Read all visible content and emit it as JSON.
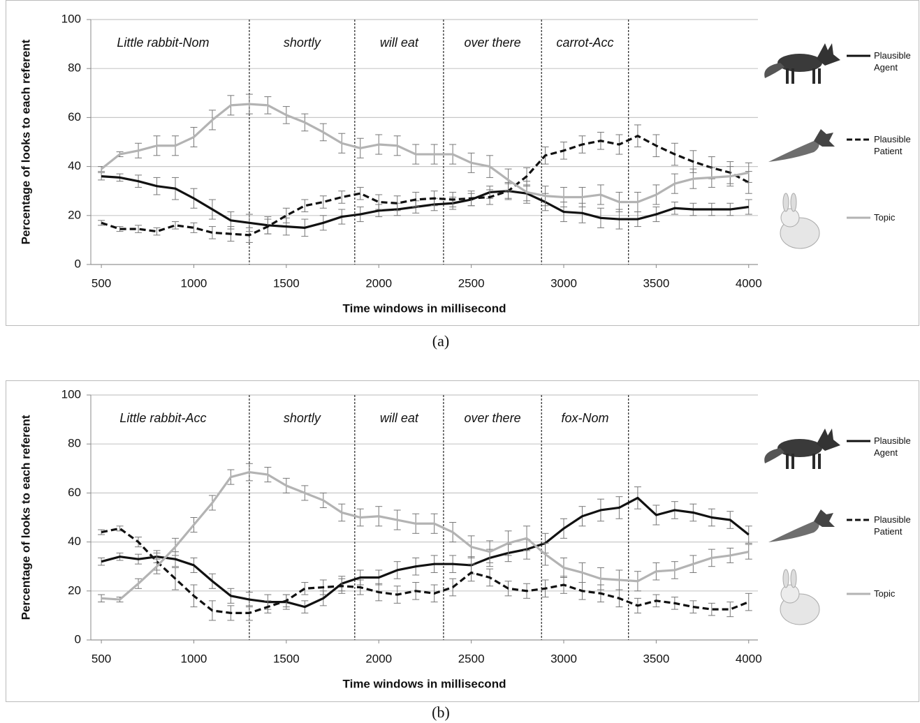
{
  "chart_data": [
    {
      "type": "line",
      "caption": "(a)",
      "x_label": "Time windows in millisecond",
      "y_label": "Percentage of looks to each referent",
      "xlim": [
        443,
        4050
      ],
      "ylim": [
        0,
        100
      ],
      "xticks": [
        500,
        1000,
        1500,
        2000,
        2500,
        3000,
        3500,
        4000
      ],
      "yticks": [
        0,
        20,
        40,
        60,
        80,
        100
      ],
      "grid": true,
      "dividers": [
        1300,
        1870,
        2350,
        2880,
        3350
      ],
      "region_labels": [
        "Little rabbit-Nom",
        "shortly",
        "will eat",
        "over there",
        "carrot-Acc"
      ],
      "x": [
        500,
        600,
        700,
        800,
        900,
        1000,
        1100,
        1200,
        1300,
        1400,
        1500,
        1600,
        1700,
        1800,
        1900,
        2000,
        2100,
        2200,
        2300,
        2400,
        2500,
        2600,
        2700,
        2800,
        2900,
        3000,
        3100,
        3200,
        3300,
        3400,
        3500,
        3600,
        3700,
        3800,
        3900,
        4000
      ],
      "series": [
        {
          "name": "Plausible Agent",
          "color": "#111111",
          "dashed": false,
          "values": [
            36,
            35.5,
            34,
            32,
            31,
            27,
            22.5,
            18,
            17,
            16,
            15.5,
            15,
            17,
            19.5,
            20.5,
            22,
            22.5,
            23.5,
            24.5,
            25,
            26.5,
            29.5,
            30,
            29,
            25.5,
            21.5,
            21,
            19,
            18.5,
            18.5,
            20.5,
            23,
            22.5,
            22.5,
            22.5,
            23.5
          ],
          "errors": [
            1.5,
            1.5,
            2.5,
            3.5,
            4.5,
            4,
            4,
            3.5,
            3.5,
            3.5,
            3.5,
            3.5,
            3,
            3,
            3,
            2.5,
            2.5,
            2.5,
            2.5,
            2.5,
            2.5,
            2.5,
            3,
            3,
            3.5,
            4,
            4,
            4,
            4,
            3,
            3,
            2.5,
            2.5,
            2.5,
            2.5,
            3
          ]
        },
        {
          "name": "Plausible Patient",
          "color": "#111111",
          "dashed": true,
          "values": [
            17,
            14.5,
            14.5,
            13.5,
            16,
            15,
            13,
            12.5,
            12,
            15.5,
            20,
            24,
            25.5,
            27.5,
            29,
            25.5,
            25,
            26.5,
            27,
            26.5,
            27,
            27.5,
            30,
            36,
            44.5,
            46.5,
            49,
            50.5,
            49,
            52.5,
            48.5,
            45,
            42,
            39.5,
            37.5,
            33.5
          ],
          "errors": [
            1,
            1,
            1.5,
            1.5,
            1.5,
            2,
            2.5,
            3,
            3,
            3,
            3,
            2.5,
            2.5,
            2.5,
            2.5,
            3,
            3,
            3,
            3,
            3,
            3,
            3,
            3.5,
            3.5,
            3.5,
            3.5,
            3.5,
            3.5,
            4,
            4.5,
            4.5,
            4.5,
            4.5,
            4.5,
            4.5,
            4.5
          ]
        },
        {
          "name": "Topic",
          "color": "#b3b3b3",
          "dashed": false,
          "values": [
            39,
            45,
            46.5,
            48.5,
            48.5,
            52,
            59,
            65,
            65.5,
            65,
            61,
            58,
            54,
            49.5,
            47.5,
            49,
            48.5,
            45,
            45,
            45,
            41.5,
            40,
            34.5,
            29.5,
            28,
            27.5,
            27.5,
            28.5,
            25.5,
            25.5,
            28.5,
            33,
            35,
            35.5,
            36,
            37.5
          ],
          "errors": [
            1,
            1,
            3,
            4,
            4,
            4,
            4,
            4,
            4,
            3.5,
            3.5,
            3.5,
            3.5,
            4,
            4,
            4,
            4,
            4,
            4,
            4,
            4,
            4.5,
            4.5,
            4.5,
            4,
            4,
            4,
            4,
            4,
            4,
            4,
            4,
            4,
            4,
            4,
            4
          ]
        }
      ]
    },
    {
      "type": "line",
      "caption": "(b)",
      "x_label": "Time windows in millisecond",
      "y_label": "Percentage of looks to each referent",
      "xlim": [
        443,
        4050
      ],
      "ylim": [
        0,
        100
      ],
      "xticks": [
        500,
        1000,
        1500,
        2000,
        2500,
        3000,
        3500,
        4000
      ],
      "yticks": [
        0,
        20,
        40,
        60,
        80,
        100
      ],
      "grid": true,
      "dividers": [
        1300,
        1870,
        2350,
        2880,
        3350
      ],
      "region_labels": [
        "Little rabbit-Acc",
        "shortly",
        "will eat",
        "over there",
        "fox-Nom"
      ],
      "x": [
        500,
        600,
        700,
        800,
        900,
        1000,
        1100,
        1200,
        1300,
        1400,
        1500,
        1600,
        1700,
        1800,
        1900,
        2000,
        2100,
        2200,
        2300,
        2400,
        2500,
        2600,
        2700,
        2800,
        2900,
        3000,
        3100,
        3200,
        3300,
        3400,
        3500,
        3600,
        3700,
        3800,
        3900,
        4000
      ],
      "series": [
        {
          "name": "Plausible Agent",
          "color": "#111111",
          "dashed": false,
          "values": [
            32,
            34,
            33,
            34,
            33,
            30.5,
            24,
            18,
            16.5,
            15.5,
            15.5,
            13.5,
            17,
            23,
            25.5,
            25.5,
            28.5,
            30,
            31,
            31,
            30.5,
            33.5,
            35.5,
            37,
            39.5,
            45.5,
            50.5,
            53,
            54,
            58,
            51,
            53,
            52,
            50,
            49,
            43
          ],
          "errors": [
            1.5,
            1.5,
            2,
            2.5,
            3,
            3,
            3,
            3,
            3,
            3,
            3,
            2.5,
            3,
            3,
            3,
            3,
            3.5,
            3.5,
            3.5,
            3.5,
            3.5,
            3.5,
            3.5,
            4,
            4,
            4,
            4,
            4.5,
            4.5,
            4.5,
            4,
            3.5,
            3.5,
            3.5,
            3.5,
            3.5
          ]
        },
        {
          "name": "Plausible Patient",
          "color": "#111111",
          "dashed": true,
          "values": [
            44,
            45.5,
            40,
            32,
            25,
            18,
            12,
            11,
            11,
            13.5,
            16,
            21,
            21.5,
            22,
            21.5,
            19.5,
            18.5,
            20,
            19,
            21.5,
            27.5,
            25.5,
            21,
            20,
            21,
            22.5,
            20,
            19,
            17,
            14,
            16,
            15,
            13.5,
            12.5,
            12.5,
            15.5
          ],
          "errors": [
            1,
            1,
            2,
            3.5,
            4.5,
            4.5,
            4,
            3,
            3,
            2.5,
            2.5,
            2.5,
            3,
            3,
            3,
            3.5,
            3.5,
            3.5,
            3.5,
            3.5,
            3.5,
            3.5,
            3,
            3,
            3.5,
            3.5,
            3.5,
            3.5,
            3.5,
            3,
            2.5,
            2.5,
            2.5,
            2.5,
            3,
            3.5
          ]
        },
        {
          "name": "Topic",
          "color": "#b3b3b3",
          "dashed": false,
          "values": [
            17,
            16.5,
            23,
            30,
            38,
            47,
            56,
            66.5,
            68.5,
            67.5,
            63,
            60,
            57,
            52,
            50,
            50.5,
            49,
            47.5,
            47.5,
            44,
            38,
            36,
            39.5,
            41.5,
            35,
            29.5,
            27.5,
            25,
            24.5,
            24,
            28,
            28.5,
            31,
            33.5,
            34.5,
            36
          ],
          "errors": [
            1.5,
            1,
            2,
            3,
            3.5,
            3,
            3,
            3,
            3.5,
            3,
            3,
            3,
            3,
            3.5,
            3.5,
            4,
            4,
            4,
            4,
            4,
            4.5,
            4.5,
            5,
            5,
            4.5,
            4,
            4,
            4.5,
            4,
            4,
            3.5,
            3.5,
            3.5,
            3.5,
            3,
            3
          ]
        }
      ]
    }
  ]
}
